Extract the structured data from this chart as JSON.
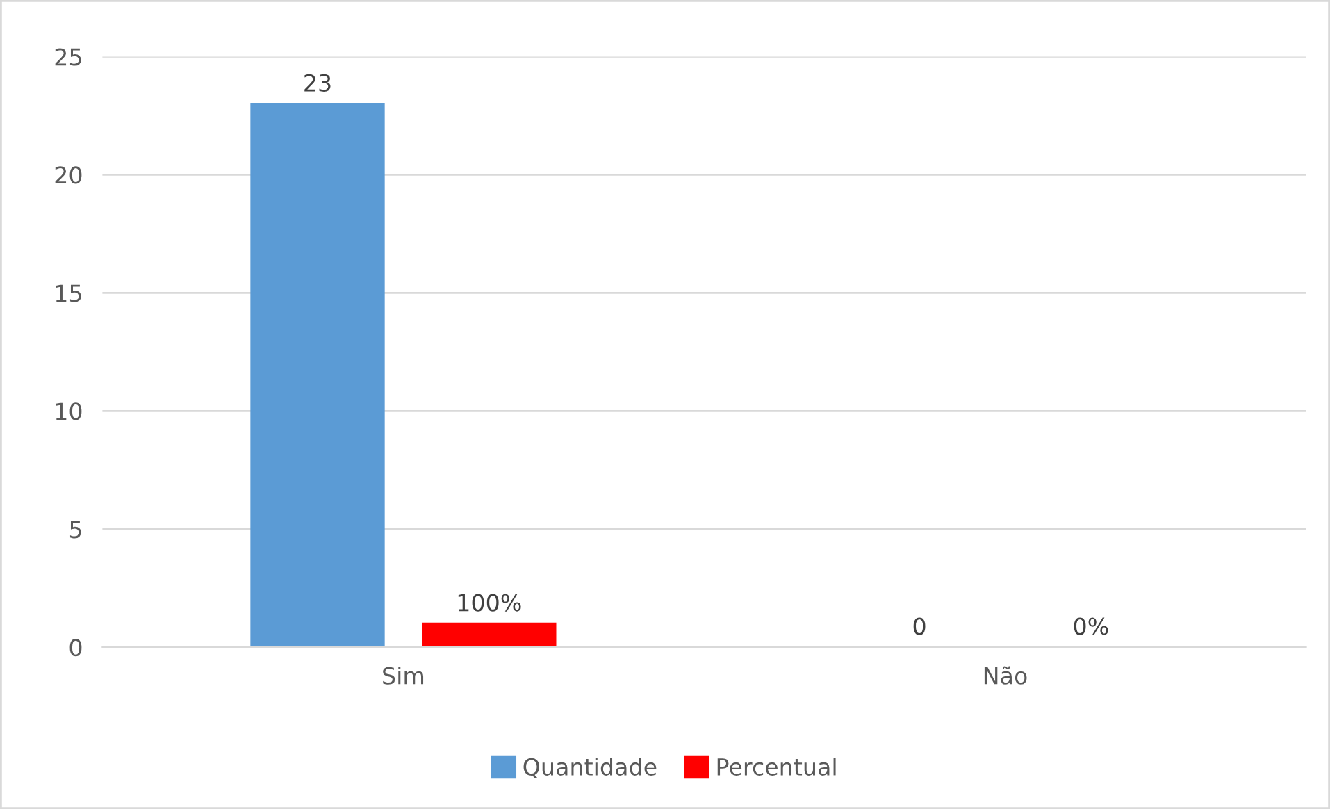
{
  "chart_data": {
    "type": "bar",
    "categories": [
      "Sim",
      "Não"
    ],
    "series": [
      {
        "name": "Quantidade",
        "color": "#5b9bd5",
        "values": [
          23,
          0
        ],
        "value_labels": [
          "23",
          "0"
        ]
      },
      {
        "name": "Percentual",
        "color": "#ff0000",
        "values": [
          1,
          0
        ],
        "value_labels": [
          "100%",
          "0%"
        ]
      }
    ],
    "ylim": [
      0,
      25
    ],
    "yticks": [
      0,
      5,
      10,
      15,
      20,
      25
    ],
    "grid": "y",
    "legend": "bottom"
  }
}
